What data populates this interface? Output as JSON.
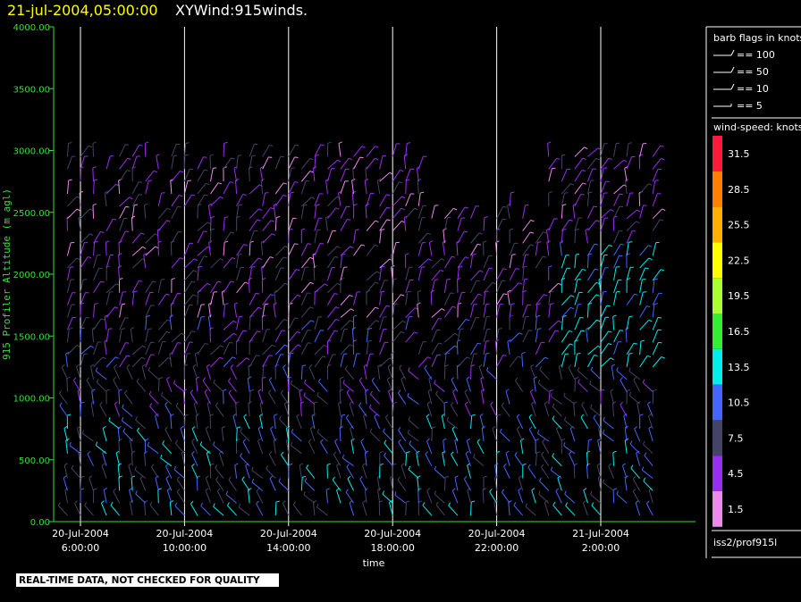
{
  "header": {
    "date": "21-jul-2004,05:00:00",
    "title": "XYWind:915winds."
  },
  "banner": "REAL-TIME DATA, NOT CHECKED FOR QUALITY",
  "source": "iss2/prof915l",
  "colors": {
    "axis": "#3cdc3c",
    "gridline": "#ffffff",
    "background": "#000000",
    "date_title": "#ffff00"
  },
  "barb_legend": {
    "title": "barb flags in knots",
    "items": [
      "== 100",
      "== 50",
      "== 10",
      "== 5"
    ]
  },
  "speed_legend": {
    "title": "wind-speed: knots",
    "bins": [
      {
        "label": "31.5",
        "color": "#ff1a3c"
      },
      {
        "label": "28.5",
        "color": "#ff7f00"
      },
      {
        "label": "25.5",
        "color": "#ffb000"
      },
      {
        "label": "22.5",
        "color": "#ffff00"
      },
      {
        "label": "19.5",
        "color": "#aaff33"
      },
      {
        "label": "16.5",
        "color": "#33ee33"
      },
      {
        "label": "13.5",
        "color": "#00eeee"
      },
      {
        "label": "10.5",
        "color": "#4466ff"
      },
      {
        "label": "7.5",
        "color": "#444466"
      },
      {
        "label": "4.5",
        "color": "#9a2ef0"
      },
      {
        "label": "1.5",
        "color": "#ee88ee"
      }
    ]
  },
  "chart_data": {
    "type": "scatter",
    "title": "XYWind:915winds.",
    "ylabel": "915 Profiler Altitude (m agl)",
    "xlabel": "time",
    "ylim": [
      0,
      4000
    ],
    "yticks": [
      "0.00",
      "500.00",
      "1000.00",
      "1500.00",
      "2000.00",
      "2500.00",
      "3000.00",
      "3500.00",
      "4000.00"
    ],
    "xlim_hours": [
      3.5,
      28.5
    ],
    "xticks": [
      {
        "hour": 6,
        "line1": "20-Jul-2004",
        "line2": "6:00:00"
      },
      {
        "hour": 10,
        "line1": "20-Jul-2004",
        "line2": "10:00:00"
      },
      {
        "hour": 14,
        "line1": "20-Jul-2004",
        "line2": "14:00:00"
      },
      {
        "hour": 18,
        "line1": "20-Jul-2004",
        "line2": "18:00:00"
      },
      {
        "hour": 22,
        "line1": "20-Jul-2004",
        "line2": "22:00:00"
      },
      {
        "hour": 26,
        "line1": "21-Jul-2004",
        "line2": "2:00:00"
      }
    ],
    "grid": "vertical",
    "profile_times_hours": [
      4,
      4.5,
      5,
      5.5,
      6,
      6.5,
      7,
      7.5,
      8,
      8.5,
      9,
      9.5,
      10,
      10.5,
      11,
      11.5,
      12,
      12.5,
      13,
      13.5,
      14,
      14.5,
      15,
      15.5,
      16,
      16.5,
      17,
      17.5,
      18,
      18.5,
      19,
      19.5,
      20,
      20.5,
      21,
      21.5,
      22,
      22.5,
      23,
      23.5,
      24,
      24.5,
      25,
      25.5,
      26,
      26.5,
      27,
      27.5,
      28
    ],
    "range_gates_m": [
      50,
      150,
      250,
      350,
      450,
      550,
      650,
      750,
      850,
      950,
      1050,
      1150,
      1250,
      1350,
      1450,
      1550,
      1650,
      1750,
      1850,
      1950,
      2050,
      2150,
      2250,
      2350,
      2450,
      2550,
      2650,
      2750,
      2850,
      2950
    ],
    "wind_speed_units": "knots"
  }
}
